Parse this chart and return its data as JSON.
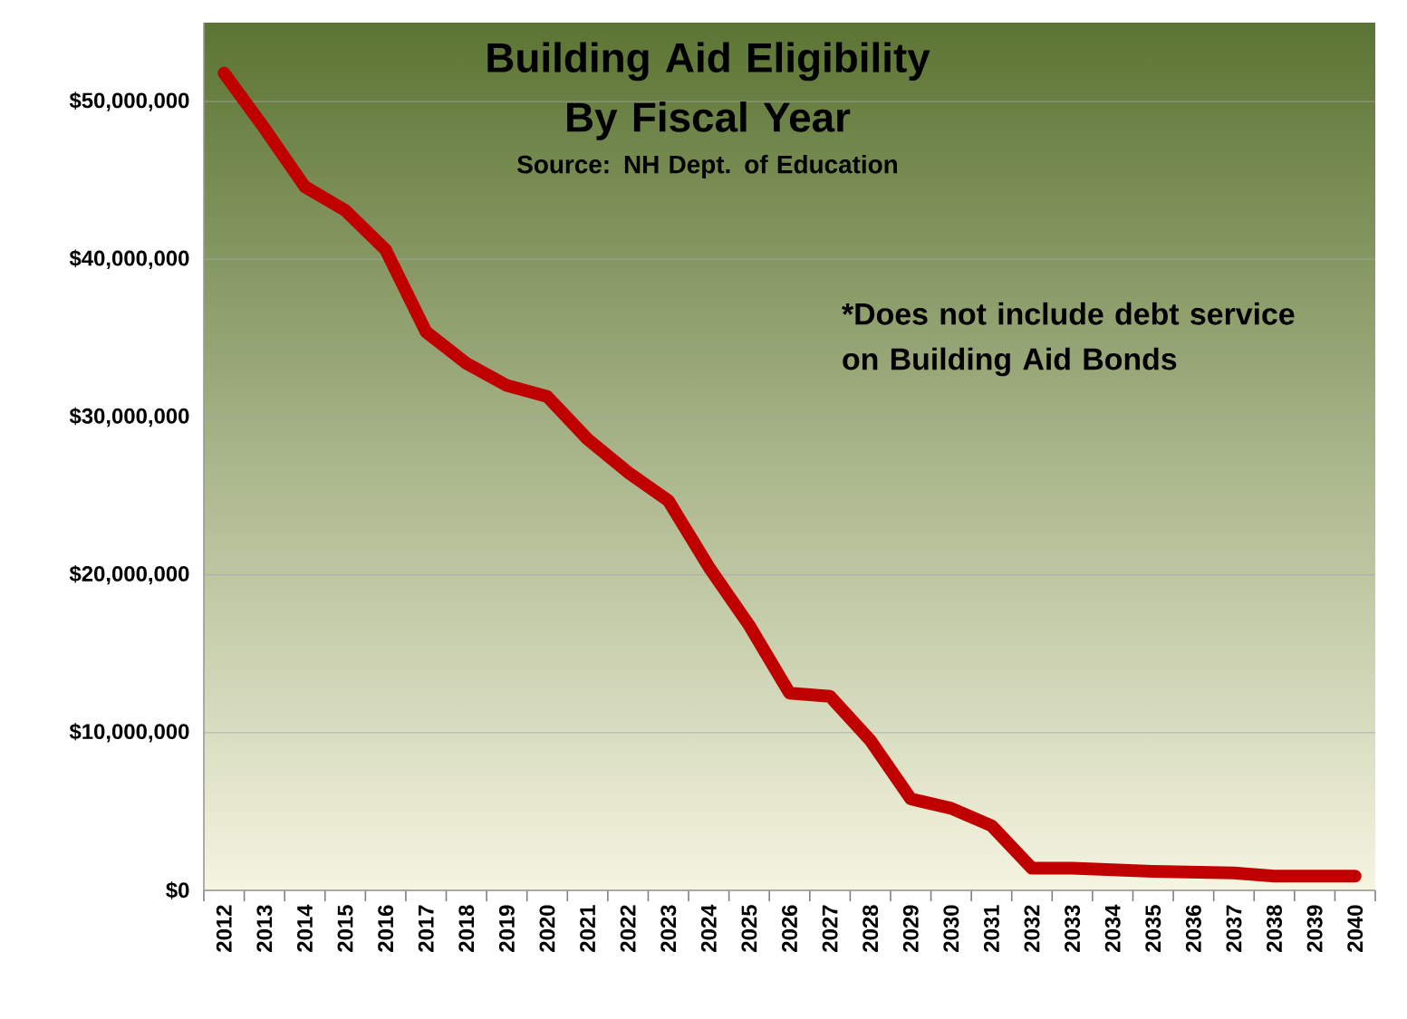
{
  "chart_data": {
    "type": "line",
    "title": "Building Aid Eligibility By Fiscal Year",
    "annotations": [
      "Source: NH Dept. of Education",
      "*Does not include debt service  on Building Aid Bonds"
    ],
    "categories": [
      "2012",
      "2013",
      "2014",
      "2015",
      "2016",
      "2017",
      "2018",
      "2019",
      "2020",
      "2021",
      "2022",
      "2023",
      "2024",
      "2025",
      "2026",
      "2027",
      "2028",
      "2029",
      "2030",
      "2031",
      "2032",
      "2033",
      "2034",
      "2035",
      "2036",
      "2037",
      "2038",
      "2039",
      "2040"
    ],
    "series": [
      {
        "color": "#c00000",
        "values": [
          51800000,
          48300000,
          44600000,
          43100000,
          40600000,
          35400000,
          33400000,
          32000000,
          31300000,
          28600000,
          26500000,
          24700000,
          20500000,
          16800000,
          12500000,
          12300000,
          9500000,
          5800000,
          5200000,
          4100000,
          1400000,
          1400000,
          1300000,
          1200000,
          1150000,
          1100000,
          900000,
          900000,
          900000
        ]
      }
    ],
    "ylim": [
      0,
      55000000
    ],
    "yticks": [
      {
        "value": 0,
        "label": "$0"
      },
      {
        "value": 10000000,
        "label": "$10,000,000"
      },
      {
        "value": 20000000,
        "label": "$20,000,000"
      },
      {
        "value": 30000000,
        "label": "$30,000,000"
      },
      {
        "value": 40000000,
        "label": "$40,000,000"
      },
      {
        "value": 50000000,
        "label": "$50,000,000"
      }
    ],
    "grid": "y",
    "marker": "none",
    "line_style": "solid"
  }
}
